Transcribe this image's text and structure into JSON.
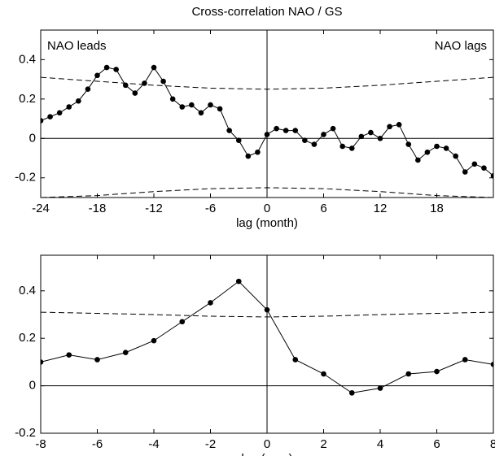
{
  "chart_data": [
    {
      "type": "line",
      "title": "Cross-correlation NAO / GS",
      "xlabel": "lag (month)",
      "annotations": [
        "NAO leads",
        "NAO lags"
      ],
      "x": [
        -24,
        -23,
        -22,
        -21,
        -20,
        -19,
        -18,
        -17,
        -16,
        -15,
        -14,
        -13,
        -12,
        -11,
        -10,
        -9,
        -8,
        -7,
        -6,
        -5,
        -4,
        -3,
        -2,
        -1,
        0,
        1,
        2,
        3,
        4,
        5,
        6,
        7,
        8,
        9,
        10,
        11,
        12,
        13,
        14,
        15,
        16,
        17,
        18,
        19,
        20,
        21,
        22,
        23,
        24
      ],
      "series": [
        {
          "color": "#000000",
          "marker": true,
          "values": [
            0.09,
            0.11,
            0.13,
            0.16,
            0.19,
            0.25,
            0.32,
            0.36,
            0.35,
            0.27,
            0.23,
            0.28,
            0.36,
            0.29,
            0.2,
            0.16,
            0.17,
            0.13,
            0.17,
            0.15,
            0.04,
            -0.01,
            -0.09,
            -0.07,
            0.02,
            0.05,
            0.04,
            0.04,
            -0.01,
            -0.03,
            0.02,
            0.05,
            -0.04,
            -0.05,
            0.01,
            0.03,
            0.0,
            0.06,
            0.07,
            -0.03,
            -0.11,
            -0.07,
            -0.04,
            -0.05,
            -0.09,
            -0.17,
            -0.13,
            -0.15,
            -0.19
          ]
        },
        {
          "color": "#000000",
          "dashed": true,
          "x": [
            -24,
            -18,
            -12,
            -6,
            0,
            6,
            12,
            18,
            24
          ],
          "values": [
            0.31,
            0.29,
            0.27,
            0.255,
            0.25,
            0.255,
            0.27,
            0.29,
            0.31
          ]
        },
        {
          "color": "#000000",
          "dashed": true,
          "x": [
            -24,
            -18,
            -12,
            -6,
            0,
            6,
            12,
            18,
            24
          ],
          "values": [
            -0.3,
            -0.29,
            -0.27,
            -0.255,
            -0.25,
            -0.255,
            -0.27,
            -0.29,
            -0.3
          ]
        }
      ],
      "xlim": [
        -24,
        24
      ],
      "xticks": [
        -24,
        -18,
        -12,
        -6,
        0,
        6,
        12,
        18
      ],
      "ylim": [
        -0.3,
        0.55
      ],
      "yticks": [
        -0.2,
        0,
        0.2,
        0.4
      ]
    },
    {
      "type": "line",
      "xlabel": "lag (year)",
      "x": [
        -8,
        -7,
        -6,
        -5,
        -4,
        -3,
        -2,
        -1,
        0,
        1,
        2,
        3,
        4,
        5,
        6,
        7,
        8
      ],
      "series": [
        {
          "color": "#000000",
          "marker": true,
          "values": [
            0.1,
            0.13,
            0.11,
            0.14,
            0.19,
            0.27,
            0.35,
            0.44,
            0.32,
            0.11,
            0.05,
            -0.03,
            -0.01,
            0.05,
            0.06,
            0.11,
            0.09
          ]
        },
        {
          "color": "#000000",
          "dashed": true,
          "x": [
            -8,
            -6,
            -4,
            -2,
            0,
            2,
            4,
            6,
            8
          ],
          "values": [
            0.31,
            0.305,
            0.3,
            0.293,
            0.29,
            0.293,
            0.3,
            0.305,
            0.31
          ]
        }
      ],
      "xlim": [
        -8,
        8
      ],
      "xticks": [
        -8,
        -6,
        -4,
        -2,
        0,
        2,
        4,
        6,
        8
      ],
      "ylim": [
        -0.2,
        0.55
      ],
      "yticks": [
        -0.2,
        0,
        0.2,
        0.4
      ]
    }
  ]
}
